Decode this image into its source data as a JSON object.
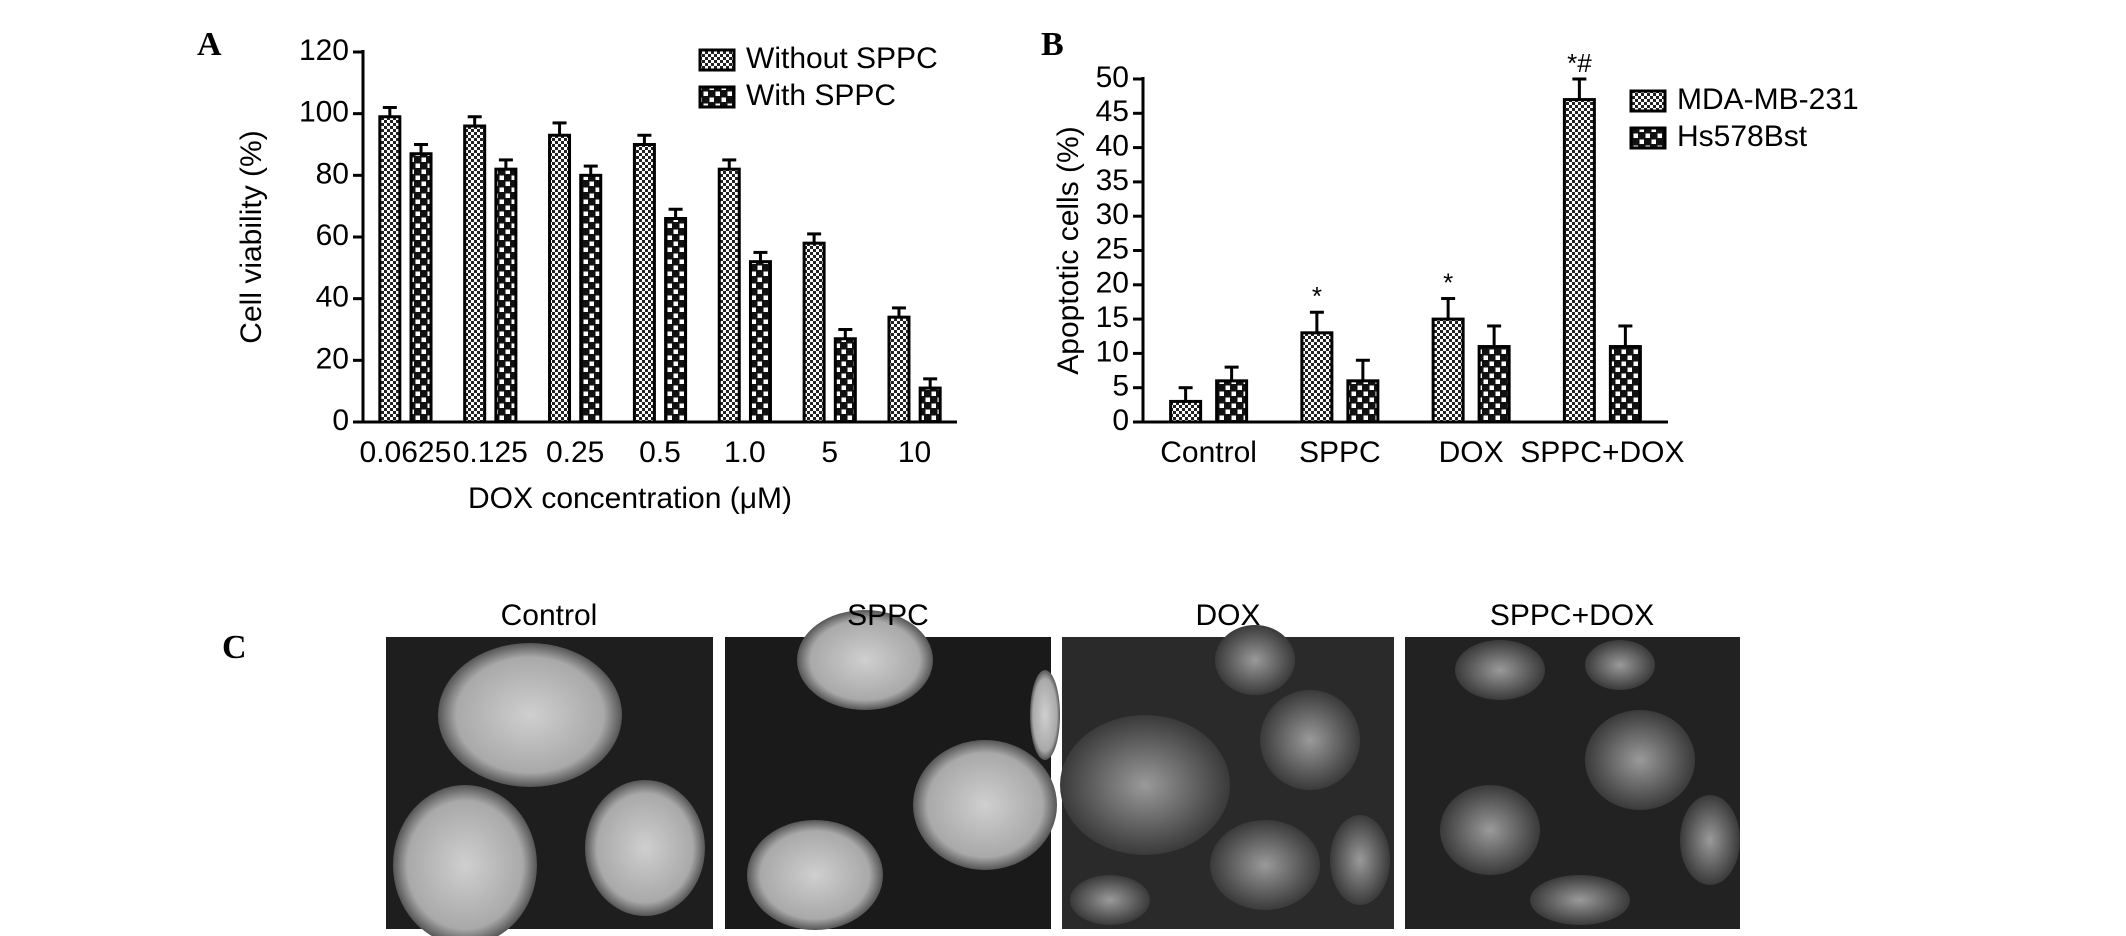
{
  "chart_data": [
    {
      "type": "bar",
      "panel_label": "A",
      "x_label": "DOX concentration (μM)",
      "y_label": "Cell viability (%)",
      "categories": [
        "0.0625",
        "0.125",
        "0.25",
        "0.5",
        "1.0",
        "5",
        "10"
      ],
      "series": [
        {
          "name": "Without SPPC",
          "color": "#000000",
          "pattern": "fine-check",
          "values": [
            99,
            96,
            93,
            90,
            82,
            58,
            34
          ],
          "errors": [
            3,
            3,
            4,
            3,
            3,
            3,
            3
          ]
        },
        {
          "name": "With SPPC",
          "color": "#000000",
          "pattern": "coarse-check",
          "values": [
            87,
            82,
            80,
            66,
            52,
            27,
            11
          ],
          "errors": [
            3,
            3,
            3,
            3,
            3,
            3,
            3
          ]
        }
      ],
      "ylim": [
        0,
        120
      ],
      "yticks": [
        0,
        20,
        40,
        60,
        80,
        100,
        120
      ],
      "legend": "upper right"
    },
    {
      "type": "bar",
      "panel_label": "B",
      "y_label": "Apoptotic cells (%)",
      "categories": [
        "Control",
        "SPPC",
        "DOX",
        "SPPC+DOX"
      ],
      "series": [
        {
          "name": "MDA-MB-231",
          "color": "#000000",
          "pattern": "fine-check",
          "values": [
            3,
            13,
            15,
            47
          ],
          "errors": [
            2,
            3,
            3,
            3
          ],
          "annotations": [
            null,
            "*",
            "*",
            "*#"
          ]
        },
        {
          "name": "Hs578Bst",
          "color": "#000000",
          "pattern": "coarse-check",
          "values": [
            6,
            6,
            11,
            11
          ],
          "errors": [
            2,
            3,
            3,
            3
          ]
        }
      ],
      "ylim": [
        0,
        50
      ],
      "yticks": [
        0,
        5,
        10,
        15,
        20,
        25,
        30,
        35,
        40,
        45,
        50
      ],
      "legend": "right"
    }
  ],
  "micrographs": {
    "panel_label": "C",
    "labels": [
      "Control",
      "SPPC",
      "DOX",
      "SPPC+DOX"
    ]
  }
}
